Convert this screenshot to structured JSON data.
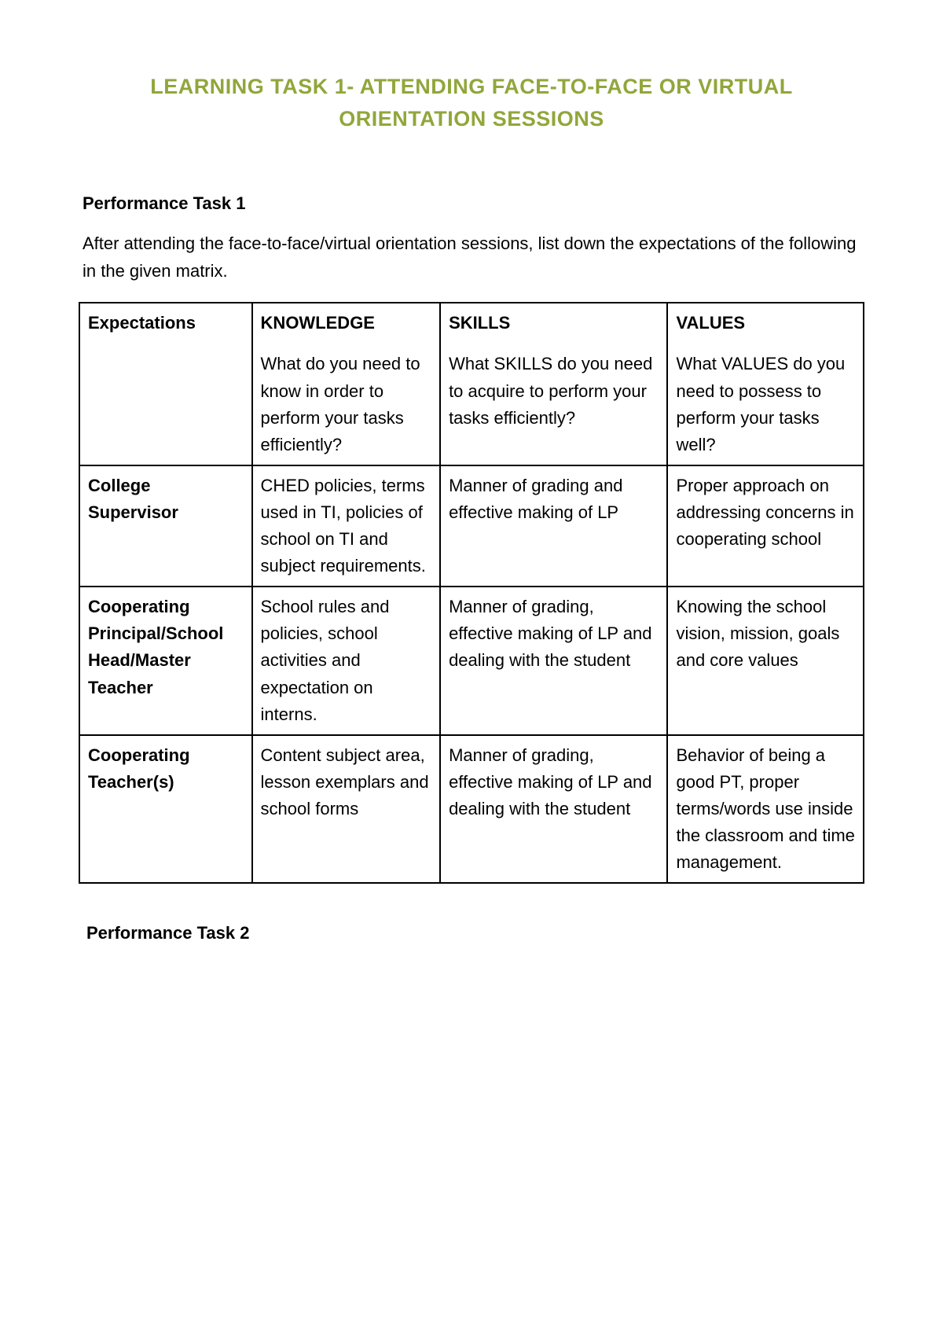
{
  "document": {
    "title": "LEARNING TASK 1- ATTENDING FACE-TO-FACE OR VIRTUAL ORIENTATION SESSIONS",
    "title_color": "#91a63b",
    "background_color": "#ffffff",
    "text_color": "#000000",
    "font_family": "Comic Sans MS",
    "task1": {
      "heading": "Performance Task 1",
      "intro": "After attending the face-to-face/virtual orientation sessions, list down the expectations of the following in the given matrix."
    },
    "task2": {
      "heading": "Performance Task 2"
    },
    "table": {
      "border_color": "#000000",
      "columns": [
        "Expectations",
        "KNOWLEDGE",
        "SKILLS",
        "VALUES"
      ],
      "subheaders": [
        "",
        "What do you need to know in order to perform your tasks efficiently?",
        "What SKILLS do you need to acquire to perform your tasks efficiently?",
        "What VALUES do you need to possess to perform your tasks well?"
      ],
      "rows": [
        {
          "label": "College Supervisor",
          "knowledge": "CHED policies, terms used in TI, policies of school on TI and subject requirements.",
          "skills": "Manner of grading and effective making of LP",
          "values": "Proper approach on addressing concerns in cooperating school"
        },
        {
          "label": "Cooperating Principal/School Head/Master Teacher",
          "knowledge": "School rules and policies, school activities and expectation on interns.",
          "skills": "Manner of grading, effective making of LP and dealing with the student",
          "values": "Knowing the school vision, mission, goals and core values"
        },
        {
          "label": "Cooperating Teacher(s)",
          "knowledge": "Content subject area, lesson exemplars and school forms",
          "skills": "Manner of grading, effective making of LP and dealing with the student",
          "values": "Behavior of being a good PT, proper terms/words use inside the classroom and time management."
        }
      ]
    }
  }
}
